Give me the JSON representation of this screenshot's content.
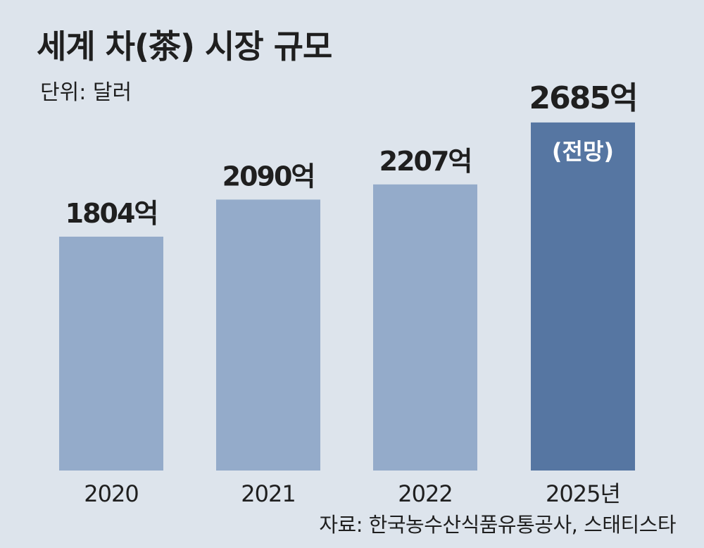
{
  "title": "세계 차(茶) 시장 규모",
  "unit_label": "단위: 달러",
  "source": "자료: 한국농수산식품유통공사, 스태티스타",
  "colors": {
    "background": "#dde4ec",
    "bar": "#94abca",
    "bar_highlight": "#5676a2",
    "text": "#1f1f1f",
    "highlight_note_text": "#ffffff"
  },
  "chart_data": {
    "type": "bar",
    "title": "세계 차(茶) 시장 규모",
    "ylabel": "단위: 달러",
    "categories": [
      "2020",
      "2021",
      "2022",
      "2025년"
    ],
    "values": [
      1804,
      2090,
      2207,
      2685
    ],
    "value_labels": [
      "1804억",
      "2090억",
      "2207억",
      "2685억"
    ],
    "highlight_index": 3,
    "highlight_note": "(전망)",
    "ylim": [
      0,
      3000
    ],
    "grid": false,
    "legend": "none"
  }
}
